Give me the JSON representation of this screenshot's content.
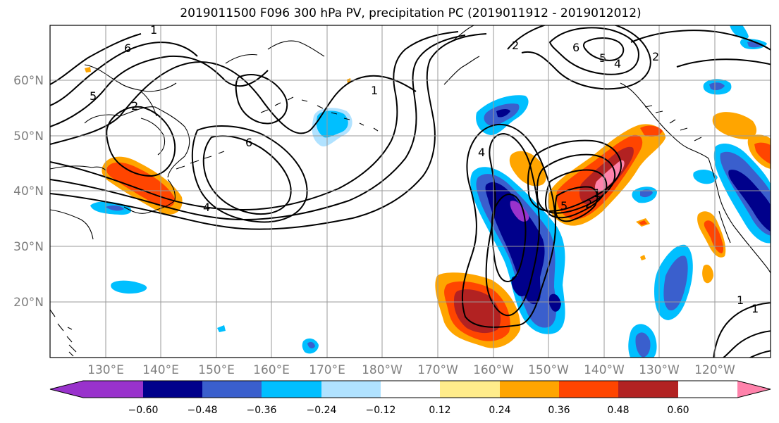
{
  "title": "2019011500 F096 300 hPa PV, precipitation PC (2019011912 - 2019012012)",
  "lat_labels": [
    "60°N",
    "50°N",
    "40°N",
    "30°N",
    "20°N"
  ],
  "lon_labels": [
    "130°E",
    "140°E",
    "150°E",
    "160°E",
    "170°E",
    "180°W",
    "170°W",
    "160°W",
    "150°W",
    "140°W",
    "130°W",
    "120°W"
  ],
  "colorbar": {
    "colors": [
      "#9932cc",
      "#00008b",
      "#3a5fcd",
      "#00bfff",
      "#b0e2ff",
      "#ffffff",
      "#ffec8b",
      "#ffa500",
      "#ff4500",
      "#b22222",
      "#ff82ab"
    ],
    "tick_labels": [
      "−0.60",
      "−0.48",
      "−0.36",
      "−0.24",
      "−0.12",
      "0.12",
      "0.24",
      "0.36",
      "0.48",
      "0.60"
    ]
  },
  "contour_labels": [
    "6",
    "5",
    "2",
    "1",
    "6",
    "4",
    "4",
    "2",
    "6",
    "5",
    "4",
    "2",
    "1",
    "5",
    "2",
    "1",
    "1",
    "1"
  ]
}
